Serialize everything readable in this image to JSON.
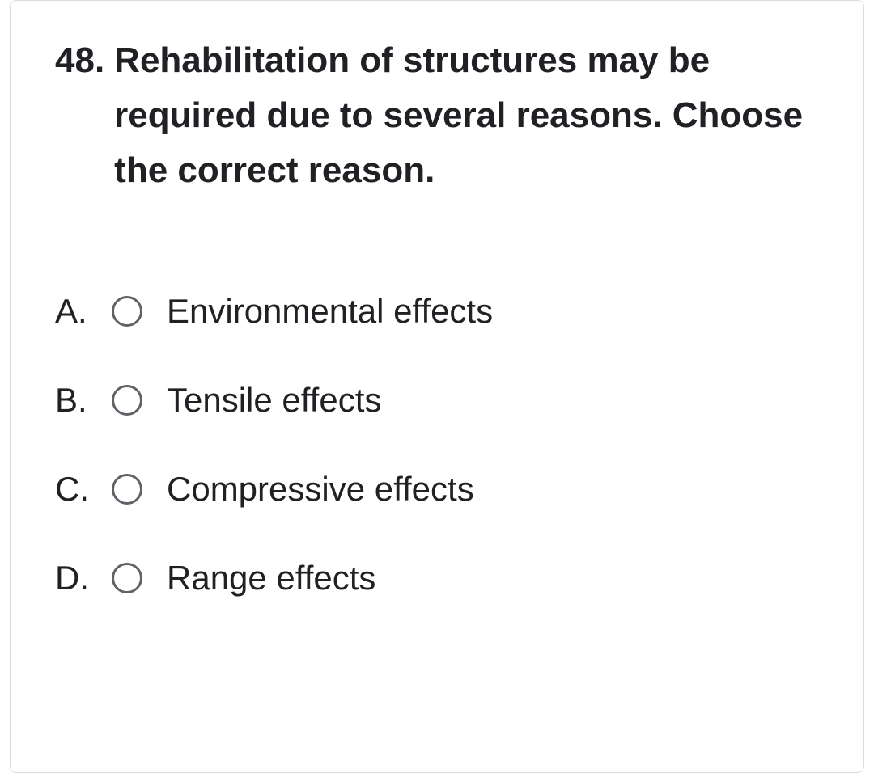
{
  "question": {
    "number": "48.",
    "text": "Rehabilitation of structures may be required due to several reasons. Choose the correct reason."
  },
  "options": [
    {
      "letter": "A.",
      "text": "Environmental effects"
    },
    {
      "letter": "B.",
      "text": "Tensile effects"
    },
    {
      "letter": "C.",
      "text": "Compressive effects"
    },
    {
      "letter": "D.",
      "text": "Range effects"
    }
  ],
  "colors": {
    "border": "#dadce0",
    "text_primary": "#202124",
    "radio_border": "#5f6368",
    "background": "#ffffff"
  },
  "typography": {
    "question_fontsize": 44,
    "question_weight": 700,
    "option_fontsize": 42,
    "option_weight": 400,
    "line_height": 1.55
  }
}
